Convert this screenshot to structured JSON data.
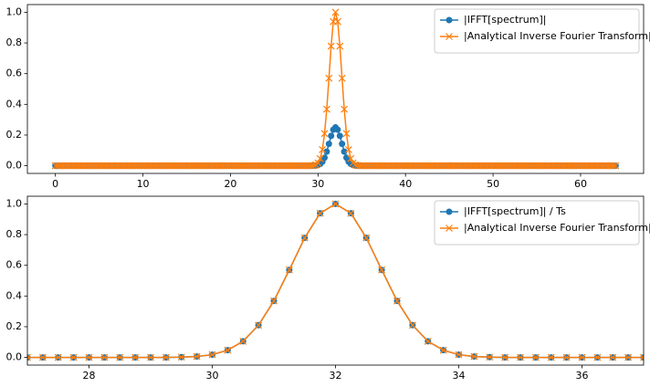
{
  "chart_data": [
    {
      "type": "line",
      "x": [
        0,
        0.25,
        0.5,
        0.75,
        1,
        1.25,
        1.5,
        1.75,
        2,
        2.25,
        2.5,
        2.75,
        3,
        3.25,
        3.5,
        3.75,
        4,
        4.25,
        4.5,
        4.75,
        5,
        5.25,
        5.5,
        5.75,
        6,
        6.25,
        6.5,
        6.75,
        7,
        7.25,
        7.5,
        7.75,
        8,
        8.25,
        8.5,
        8.75,
        9,
        9.25,
        9.5,
        9.75,
        10,
        10.25,
        10.5,
        10.75,
        11,
        11.25,
        11.5,
        11.75,
        12,
        12.25,
        12.5,
        12.75,
        13,
        13.25,
        13.5,
        13.75,
        14,
        14.25,
        14.5,
        14.75,
        15,
        15.25,
        15.5,
        15.75,
        16,
        16.25,
        16.5,
        16.75,
        17,
        17.25,
        17.5,
        17.75,
        18,
        18.25,
        18.5,
        18.75,
        19,
        19.25,
        19.5,
        19.75,
        20,
        20.25,
        20.5,
        20.75,
        21,
        21.25,
        21.5,
        21.75,
        22,
        22.25,
        22.5,
        22.75,
        23,
        23.25,
        23.5,
        23.75,
        24,
        24.25,
        24.5,
        24.75,
        25,
        25.25,
        25.5,
        25.75,
        26,
        26.25,
        26.5,
        26.75,
        27,
        27.25,
        27.5,
        27.75,
        28,
        28.25,
        28.5,
        28.75,
        29,
        29.25,
        29.5,
        29.75,
        30,
        30.25,
        30.5,
        30.75,
        31,
        31.25,
        31.5,
        31.75,
        32,
        32.25,
        32.5,
        32.75,
        33,
        33.25,
        33.5,
        33.75,
        34,
        34.25,
        34.5,
        34.75,
        35,
        35.25,
        35.5,
        35.75,
        36,
        36.25,
        36.5,
        36.75,
        37,
        37.25,
        37.5,
        37.75,
        38,
        38.25,
        38.5,
        38.75,
        39,
        39.25,
        39.5,
        39.75,
        40,
        40.25,
        40.5,
        40.75,
        41,
        41.25,
        41.5,
        41.75,
        42,
        42.25,
        42.5,
        42.75,
        43,
        43.25,
        43.5,
        43.75,
        44,
        44.25,
        44.5,
        44.75,
        45,
        45.25,
        45.5,
        45.75,
        46,
        46.25,
        46.5,
        46.75,
        47,
        47.25,
        47.5,
        47.75,
        48,
        48.25,
        48.5,
        48.75,
        49,
        49.25,
        49.5,
        49.75,
        50,
        50.25,
        50.5,
        50.75,
        51,
        51.25,
        51.5,
        51.75,
        52,
        52.25,
        52.5,
        52.75,
        53,
        53.25,
        53.5,
        53.75,
        54,
        54.25,
        54.5,
        54.75,
        55,
        55.25,
        55.5,
        55.75,
        56,
        56.25,
        56.5,
        56.75,
        57,
        57.25,
        57.5,
        57.75,
        58,
        58.25,
        58.5,
        58.75,
        59,
        59.25,
        59.5,
        59.75,
        60,
        60.25,
        60.5,
        60.75,
        61,
        61.25,
        61.5,
        61.75,
        62,
        62.25,
        62.5,
        62.75,
        63,
        63.25,
        63.5,
        63.75,
        64
      ],
      "series": [
        {
          "name": "|IFFT[spectrum]|",
          "color": "#1f77b4",
          "marker": "o",
          "values": [
            0,
            0,
            0,
            0,
            0,
            0,
            0,
            0,
            0,
            0,
            0,
            0,
            0,
            0,
            0,
            0,
            0,
            0,
            0,
            0,
            0,
            0,
            0,
            0,
            0,
            0,
            0,
            0,
            0,
            0,
            0,
            0,
            0,
            0,
            0,
            0,
            0,
            0,
            0,
            0,
            0,
            0,
            0,
            0,
            0,
            0,
            0,
            0,
            0,
            0,
            0,
            0,
            0,
            0,
            0,
            0,
            0,
            0,
            0,
            0,
            0,
            0,
            0,
            0,
            0,
            0,
            0,
            0,
            0,
            0,
            0,
            0,
            0,
            0,
            0,
            0,
            0,
            0,
            0,
            0,
            0,
            0,
            0,
            0,
            0,
            0,
            0,
            0,
            0,
            0,
            0,
            0,
            0,
            0,
            0,
            0,
            0,
            0,
            0,
            0,
            0,
            0,
            0,
            0,
            0,
            0,
            0,
            0,
            0,
            0,
            0,
            0,
            0,
            0,
            0,
            0,
            0,
            0,
            0.0005,
            0.0016,
            0.0046,
            0.0117,
            0.0264,
            0.0524,
            0.092,
            0.1424,
            0.1947,
            0.2349,
            0.25,
            0.2349,
            0.1947,
            0.1424,
            0.092,
            0.0524,
            0.0264,
            0.0117,
            0.0046,
            0.0016,
            0.0005,
            0,
            0,
            0,
            0,
            0,
            0,
            0,
            0,
            0,
            0,
            0,
            0,
            0,
            0,
            0,
            0,
            0,
            0,
            0,
            0,
            0,
            0,
            0,
            0,
            0,
            0,
            0,
            0,
            0,
            0,
            0,
            0,
            0,
            0,
            0,
            0,
            0,
            0,
            0,
            0,
            0,
            0,
            0,
            0,
            0,
            0,
            0,
            0,
            0,
            0,
            0,
            0,
            0,
            0,
            0,
            0,
            0,
            0,
            0,
            0,
            0,
            0,
            0,
            0,
            0,
            0,
            0,
            0,
            0,
            0,
            0,
            0,
            0,
            0,
            0,
            0,
            0,
            0,
            0,
            0,
            0,
            0,
            0,
            0,
            0,
            0,
            0,
            0,
            0,
            0,
            0,
            0,
            0,
            0,
            0,
            0,
            0,
            0,
            0,
            0,
            0,
            0,
            0,
            0,
            0,
            0,
            0,
            0,
            0,
            0,
            0,
            0,
            0,
            0,
            0,
            0,
            0,
            0
          ]
        },
        {
          "name": "|Analytical Inverse Fourier Transform|",
          "color": "#ff7f0e",
          "marker": "x",
          "values": [
            0,
            0,
            0,
            0,
            0,
            0,
            0,
            0,
            0,
            0,
            0,
            0,
            0,
            0,
            0,
            0,
            0,
            0,
            0,
            0,
            0,
            0,
            0,
            0,
            0,
            0,
            0,
            0,
            0,
            0,
            0,
            0,
            0,
            0,
            0,
            0,
            0,
            0,
            0,
            0,
            0,
            0,
            0,
            0,
            0,
            0,
            0,
            0,
            0,
            0,
            0,
            0,
            0,
            0,
            0,
            0,
            0,
            0,
            0,
            0,
            0,
            0,
            0,
            0,
            0,
            0,
            0,
            0,
            0,
            0,
            0,
            0,
            0,
            0,
            0,
            0,
            0,
            0,
            0,
            0,
            0,
            0,
            0,
            0,
            0,
            0,
            0,
            0,
            0,
            0,
            0,
            0,
            0,
            0,
            0,
            0,
            0,
            0,
            0,
            0,
            0,
            0,
            0,
            0,
            0,
            0,
            0,
            0,
            0,
            0,
            0,
            0,
            0,
            0,
            0,
            0,
            0,
            0,
            0.002,
            0.006,
            0.018,
            0.047,
            0.105,
            0.21,
            0.368,
            0.57,
            0.779,
            0.939,
            1,
            0.939,
            0.779,
            0.57,
            0.368,
            0.21,
            0.105,
            0.047,
            0.018,
            0.006,
            0.002,
            0,
            0,
            0,
            0,
            0,
            0,
            0,
            0,
            0,
            0,
            0,
            0,
            0,
            0,
            0,
            0,
            0,
            0,
            0,
            0,
            0,
            0,
            0,
            0,
            0,
            0,
            0,
            0,
            0,
            0,
            0,
            0,
            0,
            0,
            0,
            0,
            0,
            0,
            0,
            0,
            0,
            0,
            0,
            0,
            0,
            0,
            0,
            0,
            0,
            0,
            0,
            0,
            0,
            0,
            0,
            0,
            0,
            0,
            0,
            0,
            0,
            0,
            0,
            0,
            0,
            0,
            0,
            0,
            0,
            0,
            0,
            0,
            0,
            0,
            0,
            0,
            0,
            0,
            0,
            0,
            0,
            0,
            0,
            0,
            0,
            0,
            0,
            0,
            0,
            0,
            0,
            0,
            0,
            0,
            0,
            0,
            0,
            0,
            0,
            0,
            0,
            0,
            0,
            0,
            0,
            0,
            0,
            0,
            0,
            0,
            0,
            0,
            0,
            0,
            0,
            0,
            0,
            0
          ]
        }
      ],
      "xlim": [
        -3.2,
        67.2
      ],
      "xticks": [
        0,
        10,
        20,
        30,
        40,
        50,
        60
      ],
      "ylim": [
        -0.05,
        1.05
      ],
      "yticks": [
        {
          "value": 0,
          "label": "0.0"
        },
        0.2,
        0.4,
        0.6,
        0.8,
        {
          "value": 1,
          "label": "1.0"
        }
      ],
      "legend": "upper right"
    },
    {
      "type": "line",
      "x": [
        27,
        27.25,
        27.5,
        27.75,
        28,
        28.25,
        28.5,
        28.75,
        29,
        29.25,
        29.5,
        29.75,
        30,
        30.25,
        30.5,
        30.75,
        31,
        31.25,
        31.5,
        31.75,
        32,
        32.25,
        32.5,
        32.75,
        33,
        33.25,
        33.5,
        33.75,
        34,
        34.25,
        34.5,
        34.75,
        35,
        35.25,
        35.5,
        35.75,
        36,
        36.25,
        36.5,
        36.75,
        37
      ],
      "series": [
        {
          "name": "|IFFT[spectrum]| / Ts",
          "color": "#1f77b4",
          "marker": "o",
          "values": [
            0,
            0,
            0,
            0,
            0,
            0,
            0,
            0,
            0,
            0,
            0.002,
            0.006,
            0.018,
            0.047,
            0.105,
            0.21,
            0.368,
            0.57,
            0.779,
            0.939,
            1,
            0.939,
            0.779,
            0.57,
            0.368,
            0.21,
            0.105,
            0.047,
            0.018,
            0.006,
            0.002,
            0,
            0,
            0,
            0,
            0,
            0,
            0,
            0,
            0,
            0
          ]
        },
        {
          "name": "|Analytical Inverse Fourier Transform|",
          "color": "#ff7f0e",
          "marker": "x",
          "values": [
            0,
            0,
            0,
            0,
            0,
            0,
            0,
            0,
            0,
            0,
            0.002,
            0.006,
            0.018,
            0.047,
            0.105,
            0.21,
            0.368,
            0.57,
            0.779,
            0.939,
            1,
            0.939,
            0.779,
            0.57,
            0.368,
            0.21,
            0.105,
            0.047,
            0.018,
            0.006,
            0.002,
            0,
            0,
            0,
            0,
            0,
            0,
            0,
            0,
            0,
            0
          ]
        }
      ],
      "xlim": [
        27,
        37
      ],
      "xticks": [
        28,
        30,
        32,
        34,
        36
      ],
      "ylim": [
        -0.05,
        1.05
      ],
      "yticks": [
        {
          "value": 0,
          "label": "0.0"
        },
        0.2,
        0.4,
        0.6,
        0.8,
        {
          "value": 1,
          "label": "1.0"
        }
      ],
      "legend": "upper right"
    }
  ]
}
